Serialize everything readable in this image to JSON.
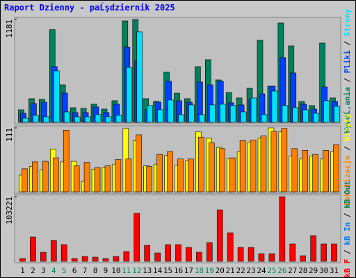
{
  "title": "Raport Dzienny -  paĹşdziernik 2025",
  "legend_separator": " / ",
  "chart_data": [
    {
      "type": "bar",
      "ylim": [
        0,
        1181
      ],
      "yticks": [
        1181
      ],
      "series": [
        {
          "name": "WywoĹ‚ania",
          "color": "#00805c",
          "values": [
            144,
            272,
            264,
            1064,
            431,
            168,
            160,
            208,
            152,
            248,
            1165,
            1181,
            272,
            240,
            575,
            335,
            272,
            639,
            719,
            487,
            343,
            280,
            391,
            942,
            415,
            1141,
            878,
            240,
            192,
            910,
            280
          ]
        },
        {
          "name": "Pliki",
          "color": "#0040ff",
          "values": [
            104,
            216,
            232,
            639,
            335,
            112,
            112,
            176,
            112,
            208,
            862,
            703,
            144,
            232,
            471,
            248,
            232,
            463,
            431,
            471,
            224,
            200,
            264,
            327,
            415,
            743,
            567,
            208,
            152,
            407,
            240
          ]
        },
        {
          "name": "Strony",
          "color": "#00e0ff",
          "values": [
            48,
            80,
            64,
            591,
            120,
            64,
            64,
            88,
            64,
            80,
            631,
            1038,
            192,
            144,
            256,
            88,
            200,
            88,
            200,
            208,
            192,
            120,
            280,
            88,
            359,
            192,
            168,
            144,
            104,
            248,
            184
          ]
        }
      ]
    },
    {
      "type": "bar",
      "ylim": [
        0,
        111
      ],
      "yticks": [
        111
      ],
      "series": [
        {
          "name": "Wizyty",
          "color": "#ffff00",
          "values": [
            29,
            44,
            38,
            74,
            52,
            53,
            18,
            39,
            42,
            48,
            110,
            89,
            45,
            48,
            63,
            46,
            54,
            104,
            93,
            77,
            58,
            70,
            86,
            93,
            111,
            104,
            62,
            57,
            62,
            57,
            70
          ]
        },
        {
          "name": "Lokalizacje",
          "color": "#ff8000",
          "values": [
            40,
            52,
            53,
            59,
            107,
            45,
            51,
            42,
            45,
            56,
            57,
            99,
            44,
            65,
            70,
            57,
            57,
            95,
            85,
            75,
            59,
            89,
            90,
            97,
            105,
            110,
            75,
            72,
            65,
            72,
            82
          ]
        }
      ],
      "legend_order": [
        1,
        0
      ]
    },
    {
      "type": "bar",
      "ylim": [
        0,
        103221
      ],
      "yticks": [
        103221
      ],
      "categories": [
        "1",
        "2",
        "3",
        "4",
        "5",
        "6",
        "7",
        "8",
        "9",
        "10",
        "11",
        "12",
        "13",
        "14",
        "15",
        "16",
        "17",
        "18",
        "19",
        "20",
        "21",
        "22",
        "23",
        "24",
        "25",
        "26",
        "27",
        "28",
        "29",
        "30",
        "31"
      ],
      "label_colors": [
        "#000",
        "#000",
        "#000",
        "#00805c",
        "#00805c",
        "#000",
        "#000",
        "#000",
        "#000",
        "#000",
        "#00805c",
        "#00805c",
        "#000",
        "#000",
        "#000",
        "#000",
        "#000",
        "#00805c",
        "#00805c",
        "#000",
        "#000",
        "#000",
        "#000",
        "#000",
        "#00805c",
        "#00805c",
        "#000",
        "#000",
        "#000",
        "#000",
        "#000"
      ],
      "series": [
        {
          "name": "kB F",
          "color": "#ff0000",
          "values": [
            4440,
            38850,
            14430,
            33300,
            26640,
            4440,
            7770,
            6660,
            4440,
            7770,
            15540,
            76590,
            25530,
            13320,
            26640,
            26640,
            22200,
            14430,
            29970,
            82140,
            45510,
            22200,
            22200,
            12210,
            12210,
            103221,
            27750,
            8880,
            41070,
            27750,
            27750
          ]
        }
      ],
      "extra_legend": [
        {
          "name": "kB In",
          "color": "#0080ff"
        },
        {
          "name": "kB Out",
          "color": "#00805c"
        }
      ]
    }
  ]
}
